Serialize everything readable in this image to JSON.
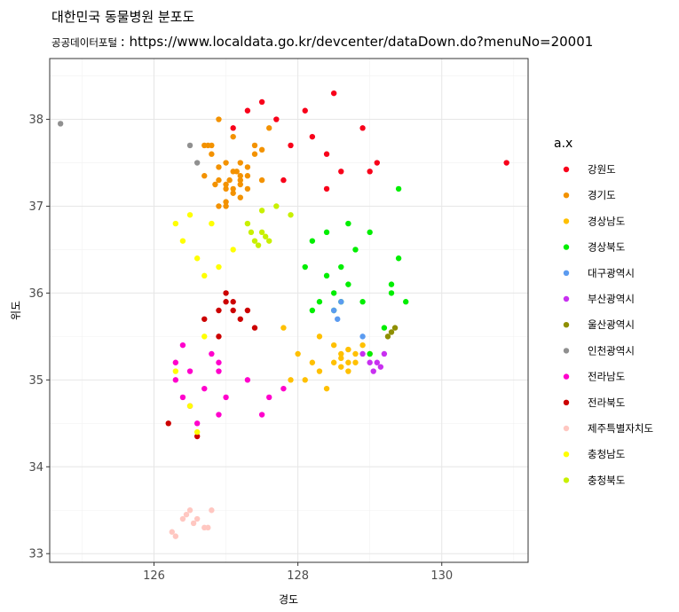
{
  "chart_data": {
    "type": "scatter",
    "title": "대한민국 동물병원 분포도",
    "subtitle_prefix": "공공데이터포털 ",
    "subtitle_url": ": https://www.localdata.go.kr/devcenter/dataDown.do?menuNo=20001",
    "xlabel": "경도",
    "ylabel": "위도",
    "xlim": [
      124.55,
      131.2
    ],
    "ylim": [
      32.9,
      38.7
    ],
    "x_ticks": [
      126,
      128,
      130
    ],
    "y_ticks": [
      33,
      34,
      35,
      36,
      37,
      38
    ],
    "grid": true,
    "legend_title": "a.x",
    "legend_position": "right",
    "series": [
      {
        "name": "강원도",
        "color": "#F8001A",
        "x": [
          127.3,
          127.5,
          127.9,
          128.6,
          128.2,
          129.0,
          128.9,
          127.7,
          127.1,
          128.5,
          127.8,
          128.4,
          130.9,
          129.1,
          128.4,
          128.1
        ],
        "y": [
          38.1,
          38.2,
          37.7,
          37.4,
          37.8,
          37.4,
          37.9,
          38.0,
          37.9,
          38.3,
          37.3,
          37.2,
          37.5,
          37.5,
          37.6,
          38.1
        ]
      },
      {
        "name": "경기도",
        "color": "#F39200",
        "x": [
          126.8,
          126.9,
          127.0,
          127.1,
          127.2,
          127.0,
          126.8,
          127.3,
          127.4,
          126.7,
          127.2,
          127.5,
          127.0,
          126.9,
          127.1,
          127.6,
          126.9,
          127.2,
          127.0,
          126.7,
          127.3,
          127.1,
          127.2,
          126.85,
          127.05,
          127.4,
          127.5,
          126.9,
          127.3,
          127.1,
          127.2,
          127.0,
          126.75,
          127.15
        ],
        "y": [
          37.7,
          37.3,
          37.2,
          37.4,
          37.3,
          37.5,
          37.6,
          37.2,
          37.6,
          37.7,
          37.1,
          37.3,
          37.0,
          37.0,
          37.8,
          37.9,
          38.0,
          37.5,
          37.25,
          37.35,
          37.45,
          37.15,
          37.35,
          37.25,
          37.3,
          37.7,
          37.65,
          37.45,
          37.35,
          37.2,
          37.25,
          37.05,
          37.7,
          37.4
        ]
      },
      {
        "name": "경상남도",
        "color": "#FFC000",
        "x": [
          128.7,
          128.6,
          128.5,
          128.8,
          128.3,
          128.2,
          128.0,
          127.9,
          128.7,
          128.6,
          129.0,
          128.9,
          128.4,
          128.1,
          128.7,
          128.5,
          128.8,
          128.6,
          128.3,
          127.8
        ],
        "y": [
          35.2,
          35.3,
          35.2,
          35.3,
          35.1,
          35.2,
          35.3,
          35.0,
          35.1,
          35.25,
          35.3,
          35.4,
          34.9,
          35.0,
          35.35,
          35.4,
          35.2,
          35.15,
          35.5,
          35.6
        ]
      },
      {
        "name": "경상북도",
        "color": "#00EE00",
        "x": [
          128.6,
          128.5,
          128.7,
          129.3,
          129.4,
          128.9,
          128.2,
          128.4,
          129.0,
          128.3,
          128.6,
          129.2,
          129.4,
          128.1,
          128.8,
          128.5,
          129.3,
          129.0,
          128.2,
          128.7,
          129.5,
          128.4
        ],
        "y": [
          35.9,
          35.8,
          36.1,
          36.0,
          36.4,
          35.9,
          36.6,
          36.2,
          36.7,
          35.9,
          36.3,
          35.6,
          37.2,
          36.3,
          36.5,
          36.0,
          36.1,
          35.3,
          35.8,
          36.8,
          35.9,
          36.7
        ]
      },
      {
        "name": "대구광역시",
        "color": "#5B9BF0",
        "x": [
          128.5,
          128.6,
          128.55,
          128.9
        ],
        "y": [
          35.8,
          35.9,
          35.7,
          35.5
        ]
      },
      {
        "name": "부산광역시",
        "color": "#C830F0",
        "x": [
          129.1,
          129.05,
          129.0,
          129.2,
          128.9,
          129.15
        ],
        "y": [
          35.2,
          35.1,
          35.2,
          35.3,
          35.3,
          35.15
        ]
      },
      {
        "name": "울산광역시",
        "color": "#8F8F00",
        "x": [
          129.3,
          129.35,
          129.25
        ],
        "y": [
          35.55,
          35.6,
          35.5
        ]
      },
      {
        "name": "인천광역시",
        "color": "#909090",
        "x": [
          124.7,
          126.5,
          126.6
        ],
        "y": [
          37.95,
          37.7,
          37.5
        ]
      },
      {
        "name": "전라남도",
        "color": "#FF00CC",
        "x": [
          126.4,
          126.9,
          126.5,
          126.3,
          127.0,
          126.5,
          126.8,
          126.7,
          127.5,
          126.9,
          127.3,
          126.6,
          127.8,
          126.4,
          126.9,
          127.6,
          126.3
        ],
        "y": [
          34.8,
          34.6,
          35.1,
          35.0,
          34.8,
          34.7,
          35.3,
          34.9,
          34.6,
          35.2,
          35.0,
          34.5,
          34.9,
          35.4,
          35.1,
          34.8,
          35.2
        ]
      },
      {
        "name": "전라북도",
        "color": "#CC0000",
        "x": [
          127.1,
          127.0,
          127.2,
          126.9,
          127.1,
          127.3,
          126.7,
          127.0,
          127.4,
          126.9,
          126.2,
          126.6
        ],
        "y": [
          35.8,
          35.9,
          35.7,
          35.8,
          35.9,
          35.8,
          35.7,
          36.0,
          35.6,
          35.5,
          34.5,
          34.35
        ]
      },
      {
        "name": "제주특별자치도",
        "color": "#FFC7C1",
        "x": [
          126.5,
          126.6,
          126.3,
          126.4,
          126.7,
          126.8,
          126.25,
          126.45,
          126.55,
          126.75
        ],
        "y": [
          33.5,
          33.4,
          33.2,
          33.4,
          33.3,
          33.5,
          33.25,
          33.45,
          33.35,
          33.3
        ]
      },
      {
        "name": "충청남도",
        "color": "#FFFF00",
        "x": [
          126.3,
          126.4,
          126.6,
          126.8,
          126.9,
          127.1,
          126.5,
          126.7,
          126.3,
          126.6,
          126.5,
          126.7
        ],
        "y": [
          36.8,
          36.6,
          36.4,
          36.8,
          36.3,
          36.5,
          36.9,
          36.2,
          35.1,
          34.4,
          34.7,
          35.5
        ]
      },
      {
        "name": "충청북도",
        "color": "#C8F000",
        "x": [
          127.4,
          127.5,
          127.6,
          127.3,
          127.45,
          127.55,
          127.7,
          127.9,
          127.35,
          127.5
        ],
        "y": [
          36.6,
          36.7,
          36.6,
          36.8,
          36.55,
          36.65,
          37.0,
          36.9,
          36.7,
          36.95
        ]
      }
    ]
  }
}
